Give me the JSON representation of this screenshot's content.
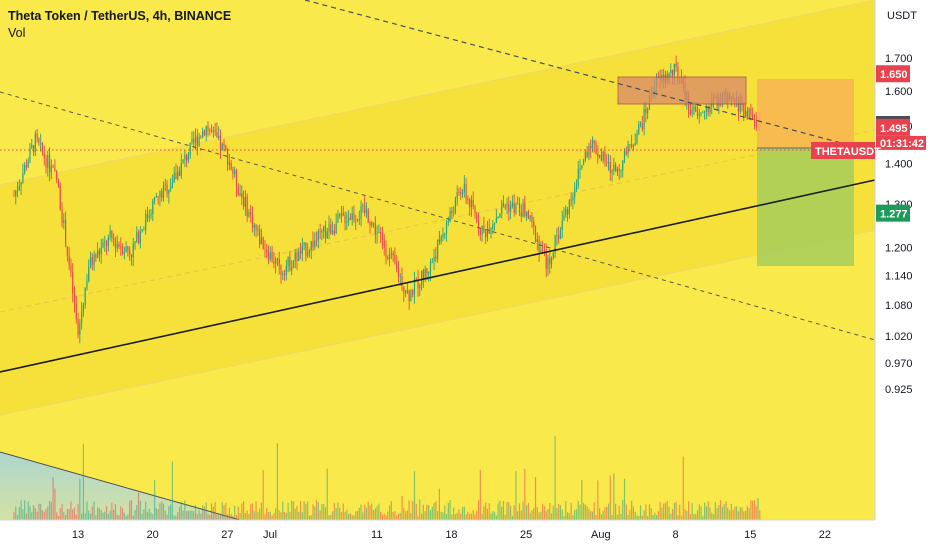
{
  "header": {
    "title": "Theta Token / TetherUS, 4h, BINANCE",
    "indicator": "Vol"
  },
  "chart_data": {
    "type": "candlestick",
    "symbol": "THETAUSDT",
    "currency_label": "USDT",
    "y_scale": "log",
    "ylim": [
      0.9,
      1.78
    ],
    "y_ticks": [
      "1.700",
      "1.600",
      "1.500",
      "1.400",
      "1.300",
      "1.200",
      "1.140",
      "1.080",
      "1.020",
      "0.970",
      "0.925"
    ],
    "x_ticks": [
      "13",
      "20",
      "27",
      "Jul",
      "11",
      "18",
      "25",
      "Aug",
      "8",
      "15",
      "22"
    ],
    "price_series": [
      {
        "date": "Jun 07",
        "price": 1.32
      },
      {
        "date": "Jun 09",
        "price": 1.46
      },
      {
        "date": "Jun 11",
        "price": 1.36
      },
      {
        "date": "Jun 13",
        "price": 1.02
      },
      {
        "date": "Jun 14",
        "price": 1.16
      },
      {
        "date": "Jun 16",
        "price": 1.22
      },
      {
        "date": "Jun 18",
        "price": 1.19
      },
      {
        "date": "Jun 20",
        "price": 1.3
      },
      {
        "date": "Jun 22",
        "price": 1.36
      },
      {
        "date": "Jun 24",
        "price": 1.46
      },
      {
        "date": "Jun 25",
        "price": 1.5
      },
      {
        "date": "Jun 27",
        "price": 1.42
      },
      {
        "date": "Jun 28",
        "price": 1.34
      },
      {
        "date": "Jun 30",
        "price": 1.22
      },
      {
        "date": "Jul 02",
        "price": 1.15
      },
      {
        "date": "Jul 04",
        "price": 1.19
      },
      {
        "date": "Jul 06",
        "price": 1.23
      },
      {
        "date": "Jul 08",
        "price": 1.27
      },
      {
        "date": "Jul 10",
        "price": 1.28
      },
      {
        "date": "Jul 12",
        "price": 1.19
      },
      {
        "date": "Jul 14",
        "price": 1.1
      },
      {
        "date": "Jul 16",
        "price": 1.16
      },
      {
        "date": "Jul 18",
        "price": 1.28
      },
      {
        "date": "Jul 19",
        "price": 1.34
      },
      {
        "date": "Jul 21",
        "price": 1.23
      },
      {
        "date": "Jul 23",
        "price": 1.3
      },
      {
        "date": "Jul 25",
        "price": 1.28
      },
      {
        "date": "Jul 27",
        "price": 1.16
      },
      {
        "date": "Jul 29",
        "price": 1.3
      },
      {
        "date": "Jul 31",
        "price": 1.46
      },
      {
        "date": "Aug 02",
        "price": 1.38
      },
      {
        "date": "Aug 03",
        "price": 1.4
      },
      {
        "date": "Aug 05",
        "price": 1.52
      },
      {
        "date": "Aug 06",
        "price": 1.62
      },
      {
        "date": "Aug 08",
        "price": 1.66
      },
      {
        "date": "Aug 09",
        "price": 1.58
      },
      {
        "date": "Aug 10",
        "price": 1.52
      },
      {
        "date": "Aug 12",
        "price": 1.58
      },
      {
        "date": "Aug 14",
        "price": 1.56
      },
      {
        "date": "Aug 15",
        "price": 1.53
      },
      {
        "date": "Aug 16",
        "price": 1.495
      }
    ],
    "price_tags": [
      {
        "name": "target",
        "value": "1.650",
        "color": "#e8424f"
      },
      {
        "name": "dashed-trendline",
        "value": "1.503",
        "color": "#4a4e57"
      },
      {
        "name": "last-price",
        "value": "1.495",
        "color": "#e8424f"
      },
      {
        "name": "stop",
        "value": "1.277",
        "color": "#1e9a5a"
      }
    ],
    "last_price": {
      "label": "THETAUSDT",
      "value": "1.495",
      "countdown": "01:31:42"
    },
    "position": {
      "entry": 1.495,
      "target": 1.65,
      "stop": 1.277
    },
    "resistance_zone": {
      "from": 1.59,
      "to": 1.66
    },
    "colors": {
      "background": "#f9e94b",
      "channel": "#f6e23f",
      "up": "#23a483",
      "down": "#e84a4a",
      "profit_zone": "#f7b454",
      "loss_zone": "#a5cc5b",
      "resistance_zone": "#d98a6a"
    },
    "grid": false,
    "legend_position": "top-left"
  }
}
